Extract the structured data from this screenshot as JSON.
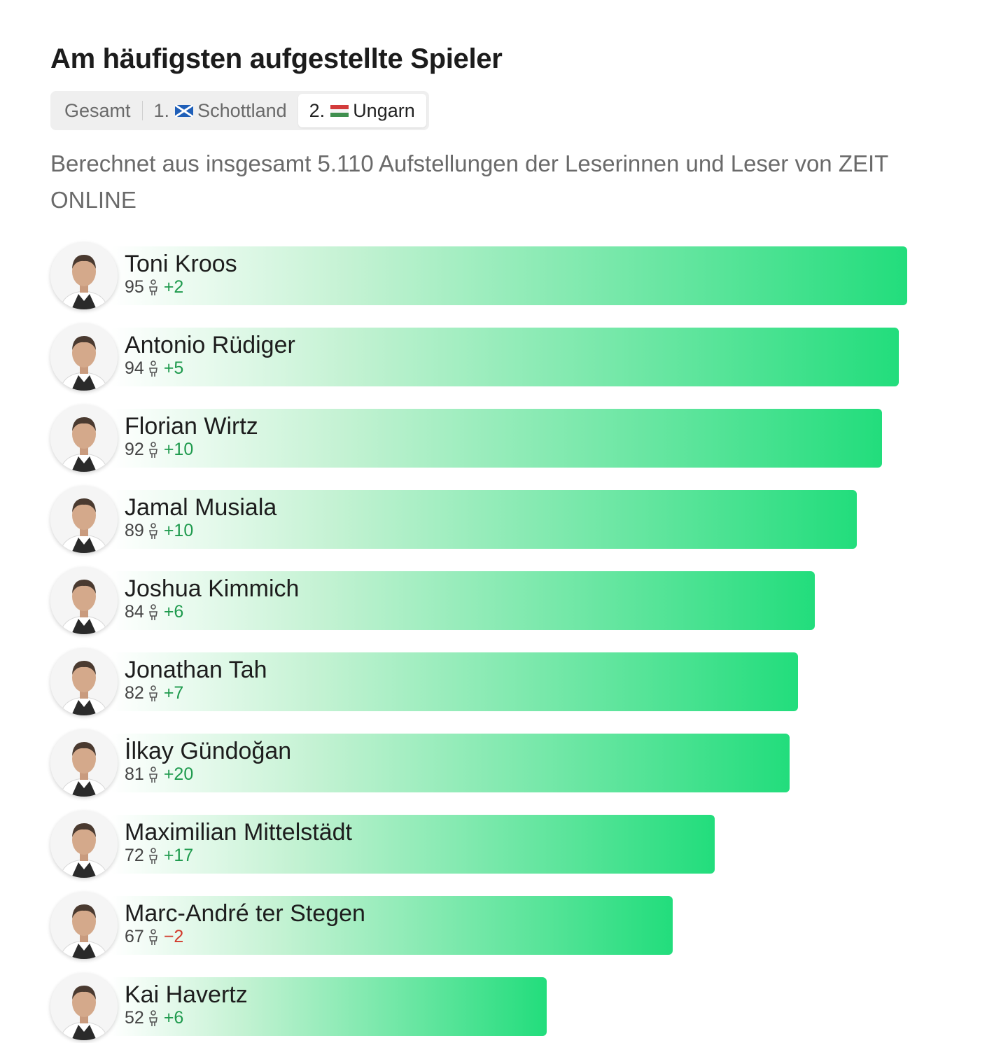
{
  "title": "Am häufigsten aufgestellte Spieler",
  "tabs": [
    {
      "label": "Gesamt",
      "active": false
    },
    {
      "prefix": "1.",
      "flag": "scotland-flag-icon",
      "label": "Schottland",
      "active": false
    },
    {
      "prefix": "2.",
      "flag": "hungary-flag-icon",
      "label": "Ungarn",
      "active": true
    }
  ],
  "subtitle": "Berechnet aus insgesamt 5.110 Aufstellungen der Leserinnen und Leser von ZEIT ONLINE",
  "colors": {
    "bar_end": "#22dd7c",
    "positive": "#1e9a4d",
    "negative": "#d23a2c"
  },
  "chart_data": {
    "type": "bar",
    "orientation": "horizontal",
    "value_unit": "%",
    "xlim": [
      0,
      100
    ],
    "categories": [
      "Toni Kroos",
      "Antonio Rüdiger",
      "Florian Wirtz",
      "Jamal Musiala",
      "Joshua Kimmich",
      "Jonathan Tah",
      "İlkay Gündoğan",
      "Maximilian Mittelstädt",
      "Marc-André ter Stegen",
      "Kai Havertz"
    ],
    "values": [
      95,
      94,
      92,
      89,
      84,
      82,
      81,
      72,
      67,
      52
    ],
    "changes": [
      "+2",
      "+5",
      "+10",
      "+10",
      "+6",
      "+7",
      "+20",
      "+17",
      "−2",
      "+6"
    ]
  }
}
